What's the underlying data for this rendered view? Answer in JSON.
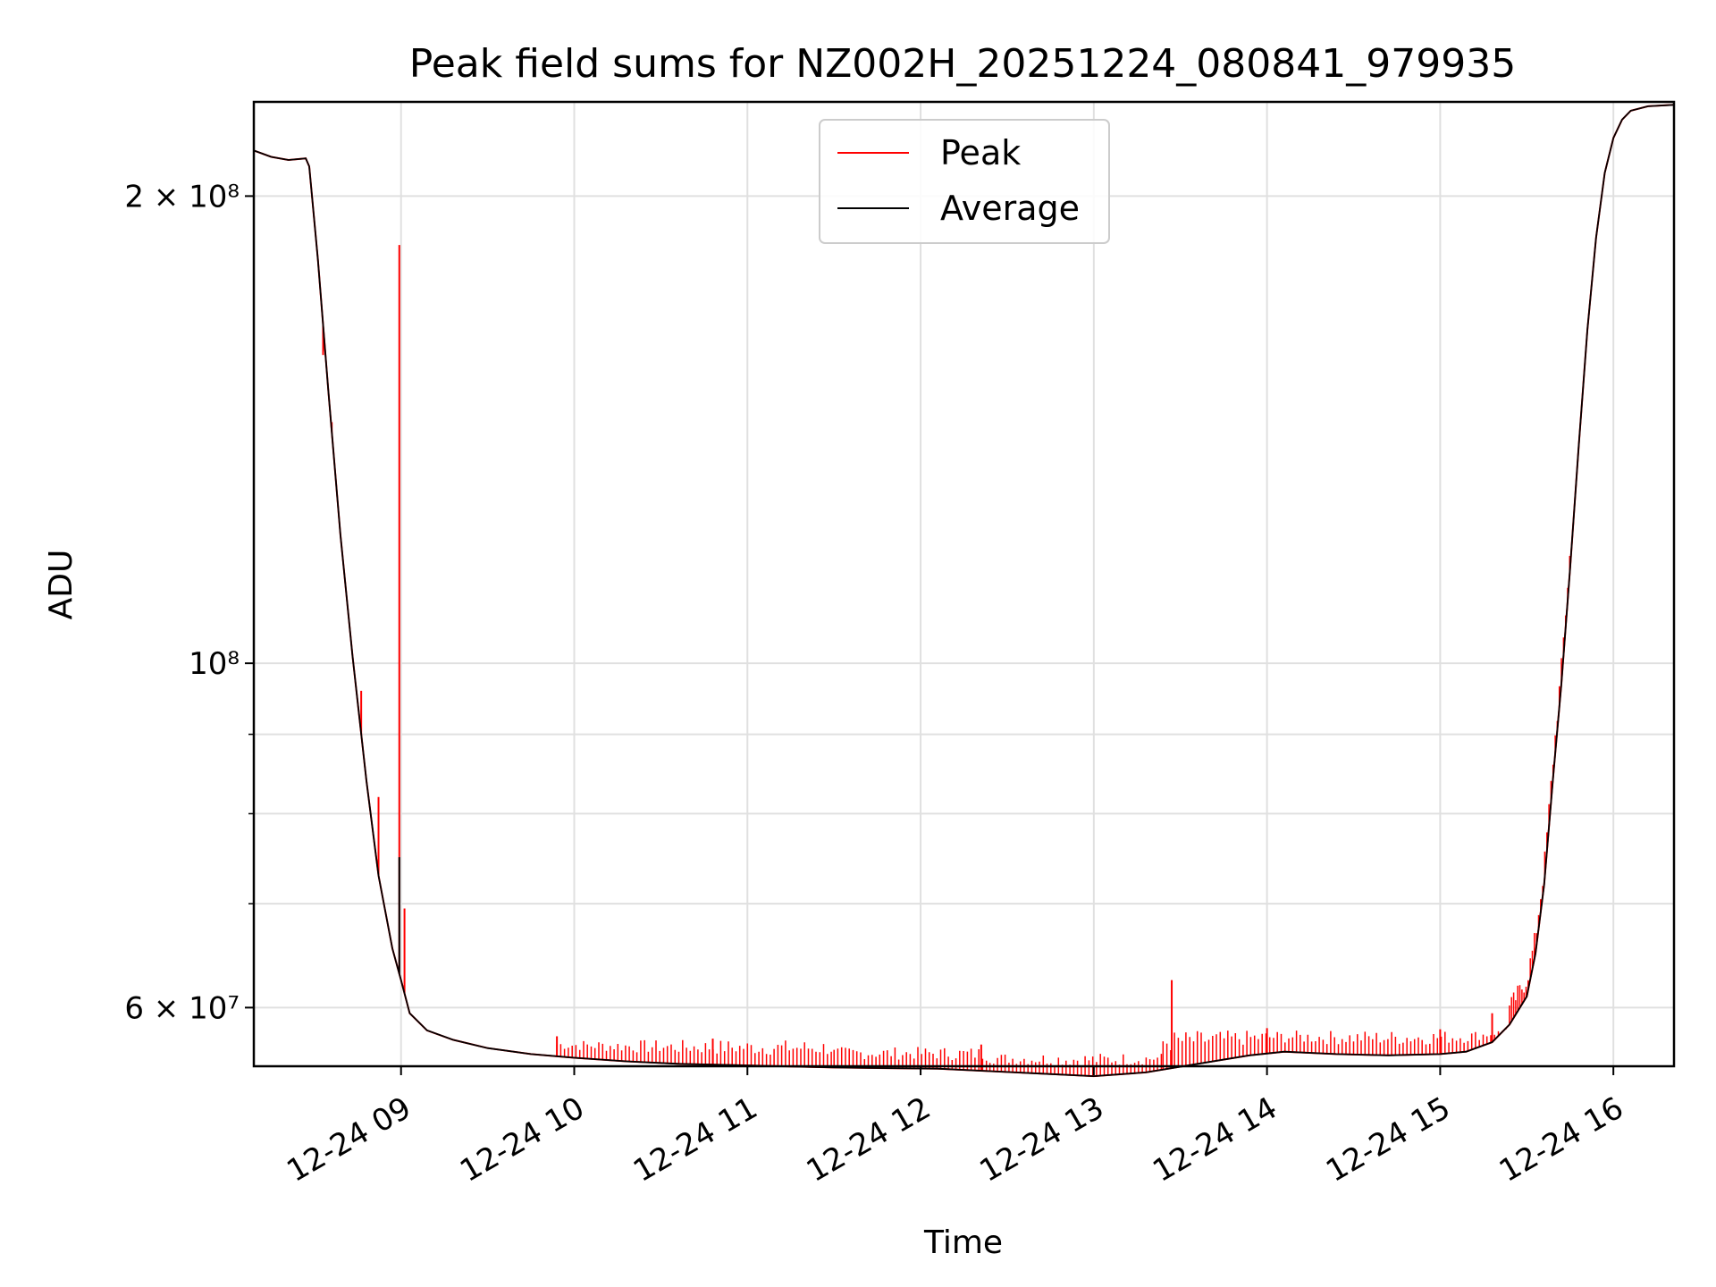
{
  "chart_data": {
    "type": "line",
    "title": "Peak field sums for NZ002H_20251224_080841_979935",
    "xlabel": "Time",
    "ylabel": "ADU",
    "yscale": "log",
    "ylim": [
      55000000,
      230000000
    ],
    "xlim_hours": [
      8.15,
      16.35
    ],
    "x_tick_hours": [
      9,
      10,
      11,
      12,
      13,
      14,
      15,
      16
    ],
    "x_tick_labels": [
      "12-24 09",
      "12-24 10",
      "12-24 11",
      "12-24 12",
      "12-24 13",
      "12-24 14",
      "12-24 15",
      "12-24 16"
    ],
    "y_ticks": [
      {
        "value": 200000000,
        "label": "2 × 10⁸"
      },
      {
        "value": 100000000,
        "label": "10⁸"
      },
      {
        "value": 60000000,
        "label": "6 × 10⁷"
      }
    ],
    "y_minor_ticks": [
      70000000,
      80000000,
      90000000
    ],
    "grid": true,
    "legend": {
      "position": "top-center",
      "entries": [
        "Peak",
        "Average"
      ]
    },
    "series": [
      {
        "name": "Average",
        "color": "#000000",
        "x_hours": [
          8.15,
          8.25,
          8.35,
          8.45,
          8.47,
          8.52,
          8.58,
          8.65,
          8.72,
          8.8,
          8.87,
          8.95,
          9.0,
          9.05,
          9.15,
          9.3,
          9.5,
          9.75,
          10.0,
          10.3,
          10.6,
          10.9,
          11.2,
          11.5,
          11.8,
          12.1,
          12.4,
          12.7,
          13.0,
          13.3,
          13.6,
          13.9,
          14.1,
          14.4,
          14.7,
          15.0,
          15.15,
          15.3,
          15.4,
          15.5,
          15.55,
          15.6,
          15.65,
          15.7,
          15.75,
          15.8,
          15.85,
          15.9,
          15.95,
          16.0,
          16.05,
          16.1,
          16.2,
          16.35
        ],
        "values": [
          214000000,
          212000000,
          211000000,
          211500000,
          209000000,
          182000000,
          150000000,
          121000000,
          101000000,
          84000000,
          73000000,
          65500000,
          62500000,
          59500000,
          58000000,
          57200000,
          56500000,
          56000000,
          55700000,
          55400000,
          55200000,
          55100000,
          55000000,
          54900000,
          54850000,
          54800000,
          54600000,
          54400000,
          54200000,
          54500000,
          55200000,
          55900000,
          56200000,
          56000000,
          55900000,
          56000000,
          56200000,
          57000000,
          58500000,
          61000000,
          65000000,
          72000000,
          84000000,
          97000000,
          115000000,
          138000000,
          164000000,
          188000000,
          207000000,
          218000000,
          224000000,
          227000000,
          228500000,
          229000000
        ]
      },
      {
        "name": "Peak",
        "color": "#ff0000",
        "spikes": [
          {
            "hour": 8.55,
            "value": 158000000
          },
          {
            "hour": 8.6,
            "value": 143000000
          },
          {
            "hour": 8.77,
            "value": 96000000
          },
          {
            "hour": 8.87,
            "value": 82000000
          },
          {
            "hour": 8.99,
            "value": 186000000
          },
          {
            "hour": 9.02,
            "value": 69500000
          },
          {
            "hour": 9.9,
            "value": 57500000
          },
          {
            "hour": 10.8,
            "value": 57300000
          },
          {
            "hour": 12.35,
            "value": 56800000
          },
          {
            "hour": 13.45,
            "value": 62500000
          },
          {
            "hour": 14.0,
            "value": 58200000
          },
          {
            "hour": 15.0,
            "value": 58100000
          },
          {
            "hour": 15.3,
            "value": 59500000
          }
        ],
        "noise_band": [
          {
            "start_hour": 9.9,
            "end_hour": 11.5,
            "upper_value": 57200000
          },
          {
            "start_hour": 11.5,
            "end_hour": 12.4,
            "upper_value": 56600000
          },
          {
            "start_hour": 12.4,
            "end_hour": 13.4,
            "upper_value": 56100000
          },
          {
            "start_hour": 13.4,
            "end_hour": 15.4,
            "upper_value": 58000000
          }
        ]
      }
    ]
  }
}
